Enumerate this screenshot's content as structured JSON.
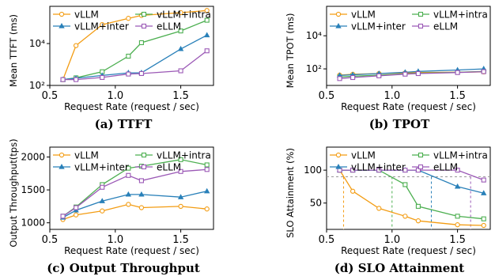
{
  "colors": {
    "vllm": "#f39c12",
    "inter": "#2980b9",
    "intra": "#4caf50",
    "ellm": "#9b59b6",
    "slo_line": "#999999"
  },
  "chart_data": [
    {
      "type": "line",
      "caption": "(a) TTFT",
      "xlabel": "Request Rate (request / sec)",
      "ylabel": "Mean TTFT (ms)",
      "yscale": "log",
      "xlim": [
        0.5,
        1.75
      ],
      "ylim": [
        100,
        600000
      ],
      "xticks": [
        0.5,
        1.0,
        1.5
      ],
      "xtick_labels": [
        "0.5",
        "1.0",
        "1.5"
      ],
      "yticks": [
        100,
        10000
      ],
      "ytick_labels": [
        "10²",
        "10⁴"
      ],
      "legend": "top",
      "x": [
        0.6,
        0.7,
        0.9,
        1.1,
        1.2,
        1.5,
        1.7
      ],
      "series": [
        {
          "name": "vLLM",
          "key": "vllm",
          "marker": "circle",
          "values": [
            190,
            8000,
            80000,
            160000,
            220000,
            300000,
            380000
          ]
        },
        {
          "name": "vLLM+intra",
          "key": "intra",
          "marker": "square",
          "values": [
            190,
            230,
            450,
            2500,
            11000,
            40000,
            130000
          ]
        },
        {
          "name": "vLLM+inter",
          "key": "inter",
          "marker": "triangle",
          "values": [
            190,
            220,
            300,
            400,
            400,
            5500,
            25000
          ]
        },
        {
          "name": "eLLM",
          "key": "ellm",
          "marker": "square",
          "values": [
            190,
            190,
            240,
            350,
            370,
            500,
            4500
          ]
        }
      ]
    },
    {
      "type": "line",
      "caption": "(b) TPOT",
      "xlabel": "Request Rate (request / sec)",
      "ylabel": "Mean TPOT (ms)",
      "yscale": "log",
      "xlim": [
        0.5,
        1.75
      ],
      "ylim": [
        10,
        600000
      ],
      "xticks": [
        0.5,
        1.0,
        1.5
      ],
      "xtick_labels": [
        "0.5",
        "1.0",
        "1.5"
      ],
      "yticks": [
        100,
        10000
      ],
      "ytick_labels": [
        "10²",
        "10⁴"
      ],
      "legend": "top",
      "x": [
        0.6,
        0.7,
        0.9,
        1.1,
        1.2,
        1.5,
        1.7
      ],
      "series": [
        {
          "name": "vLLM",
          "key": "vllm",
          "marker": "circle",
          "values": [
            42,
            47,
            52,
            57,
            60,
            63,
            66
          ]
        },
        {
          "name": "vLLM+intra",
          "key": "intra",
          "marker": "square",
          "values": [
            32,
            36,
            42,
            50,
            55,
            62,
            70
          ]
        },
        {
          "name": "vLLM+inter",
          "key": "inter",
          "marker": "triangle",
          "values": [
            40,
            44,
            52,
            62,
            70,
            85,
            100
          ]
        },
        {
          "name": "eLLM",
          "key": "ellm",
          "marker": "square",
          "values": [
            26,
            30,
            38,
            48,
            52,
            60,
            68
          ]
        }
      ]
    },
    {
      "type": "line",
      "caption": "(c) Output Throughput",
      "xlabel": "Request Rate (request / sec)",
      "ylabel": "Output Throughput(tps)",
      "yscale": "linear",
      "xlim": [
        0.5,
        1.75
      ],
      "ylim": [
        900,
        2150
      ],
      "xticks": [
        0.5,
        1.0,
        1.5
      ],
      "xtick_labels": [
        "0.5",
        "1.0",
        "1.5"
      ],
      "yticks": [
        1000,
        1500,
        2000
      ],
      "ytick_labels": [
        "1000",
        "1500",
        "2000"
      ],
      "legend": "top",
      "x": [
        0.6,
        0.7,
        0.9,
        1.1,
        1.2,
        1.5,
        1.7
      ],
      "series": [
        {
          "name": "vLLM",
          "key": "vllm",
          "marker": "circle",
          "values": [
            1050,
            1120,
            1180,
            1280,
            1230,
            1250,
            1210
          ]
        },
        {
          "name": "vLLM+intra",
          "key": "intra",
          "marker": "square",
          "values": [
            1100,
            1240,
            1580,
            1830,
            1860,
            1960,
            1880
          ]
        },
        {
          "name": "vLLM+inter",
          "key": "inter",
          "marker": "triangle",
          "values": [
            1080,
            1190,
            1330,
            1430,
            1430,
            1390,
            1480
          ]
        },
        {
          "name": "eLLM",
          "key": "ellm",
          "marker": "square",
          "values": [
            1100,
            1230,
            1540,
            1720,
            1640,
            1780,
            1810
          ]
        }
      ]
    },
    {
      "type": "line",
      "caption": "(d) SLO Attainment",
      "xlabel": "Request Rate (request / sec)",
      "ylabel": "SLO Attainment  (%)",
      "yscale": "linear",
      "xlim": [
        0.5,
        1.75
      ],
      "ylim": [
        10,
        135
      ],
      "xticks": [
        0.5,
        1.0,
        1.5
      ],
      "xtick_labels": [
        "0.5",
        "1.0",
        "1.5"
      ],
      "yticks": [
        50,
        100
      ],
      "ytick_labels": [
        "50",
        "100"
      ],
      "legend": "top",
      "x": [
        0.6,
        0.7,
        0.9,
        1.1,
        1.2,
        1.5,
        1.7
      ],
      "slo_target": 90,
      "slo_crossings": [
        {
          "key": "vllm",
          "x": 0.63
        },
        {
          "key": "intra",
          "x": 1.0
        },
        {
          "key": "inter",
          "x": 1.3
        },
        {
          "key": "ellm",
          "x": 1.6
        }
      ],
      "series": [
        {
          "name": "vLLM",
          "key": "vllm",
          "marker": "circle",
          "values": [
            100,
            68,
            42,
            30,
            23,
            17,
            16
          ]
        },
        {
          "name": "vLLM+intra",
          "key": "intra",
          "marker": "square",
          "values": [
            100,
            100,
            100,
            78,
            45,
            30,
            26
          ]
        },
        {
          "name": "vLLM+inter",
          "key": "inter",
          "marker": "triangle",
          "values": [
            100,
            100,
            100,
            100,
            100,
            75,
            65
          ]
        },
        {
          "name": "eLLM",
          "key": "ellm",
          "marker": "square",
          "values": [
            100,
            100,
            100,
            100,
            100,
            100,
            85
          ]
        }
      ]
    }
  ]
}
